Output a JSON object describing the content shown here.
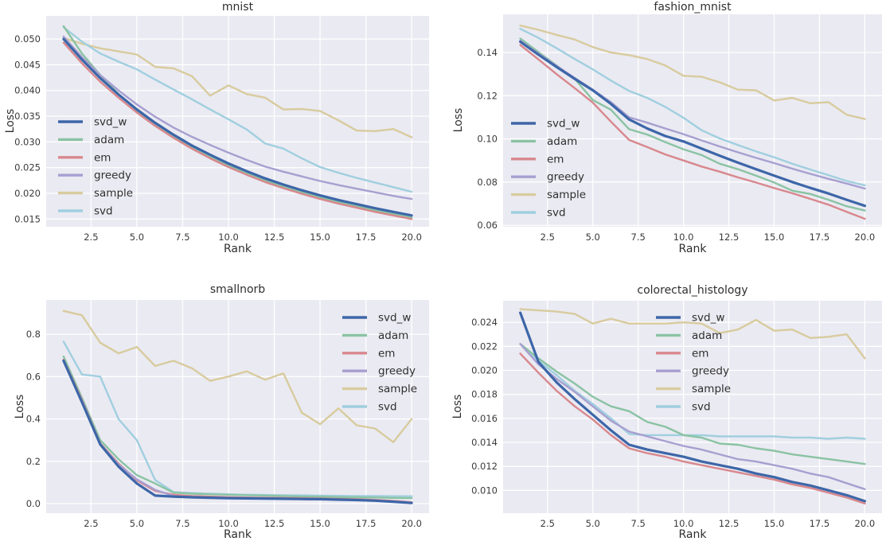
{
  "figure": {
    "background": "#ffffff",
    "plot_background": "#eaeaf2",
    "grid_color": "#ffffff",
    "text_color": "#2f2f2f",
    "tick_color": "#3a3a3a"
  },
  "palette": {
    "svd_w": "#3d66a8",
    "adam": "#8ac3a3",
    "em": "#d8878d",
    "greedy": "#a79fd0",
    "sample": "#d8cb9e",
    "svd": "#a0cfdf"
  },
  "legend_order": [
    "svd_w",
    "adam",
    "em",
    "greedy",
    "sample",
    "svd"
  ],
  "chart_data": [
    {
      "type": "line",
      "title": "mnist",
      "xlabel": "Rank",
      "ylabel": "Loss",
      "grid": true,
      "legend_position": "center-left",
      "x": [
        1,
        2,
        3,
        4,
        5,
        6,
        7,
        8,
        9,
        10,
        11,
        12,
        13,
        14,
        15,
        16,
        17,
        18,
        19,
        20
      ],
      "xlim": [
        0.05,
        20.95
      ],
      "ylim": [
        0.0135,
        0.0545
      ],
      "x_tick_values": [
        2.5,
        5,
        7.5,
        10,
        12.5,
        15,
        17.5,
        20
      ],
      "x_tick_labels": [
        "2.5",
        "5.0",
        "7.5",
        "10.0",
        "12.5",
        "15.0",
        "17.5",
        "20.0"
      ],
      "y_tick_values": [
        0.015,
        0.02,
        0.025,
        0.03,
        0.035,
        0.04,
        0.045,
        0.05
      ],
      "y_tick_labels": [
        "0.015",
        "0.020",
        "0.025",
        "0.030",
        "0.035",
        "0.040",
        "0.045",
        "0.050"
      ],
      "series": [
        {
          "name": "svd_w",
          "values": [
            0.05,
            0.046,
            0.0424,
            0.0392,
            0.0363,
            0.0337,
            0.0314,
            0.0293,
            0.0275,
            0.0258,
            0.0243,
            0.0229,
            0.0217,
            0.0206,
            0.0196,
            0.0187,
            0.0179,
            0.0171,
            0.0164,
            0.0157
          ]
        },
        {
          "name": "adam",
          "values": [
            0.0525,
            0.0472,
            0.043,
            0.0393,
            0.0361,
            0.0334,
            0.031,
            0.0289,
            0.0271,
            0.0254,
            0.0239,
            0.0225,
            0.0213,
            0.0202,
            0.0192,
            0.0183,
            0.0175,
            0.0167,
            0.016,
            0.0153
          ]
        },
        {
          "name": "em",
          "values": [
            0.0493,
            0.0453,
            0.0417,
            0.0386,
            0.0357,
            0.0331,
            0.0308,
            0.0287,
            0.0268,
            0.0251,
            0.0236,
            0.0222,
            0.021,
            0.0199,
            0.0189,
            0.018,
            0.0172,
            0.0164,
            0.0157,
            0.015
          ]
        },
        {
          "name": "greedy",
          "values": [
            0.0505,
            0.0465,
            0.043,
            0.04,
            0.0373,
            0.0349,
            0.0328,
            0.031,
            0.0294,
            0.0279,
            0.0265,
            0.0252,
            0.0242,
            0.0233,
            0.0224,
            0.0216,
            0.0209,
            0.0202,
            0.0195,
            0.0189
          ]
        },
        {
          "name": "sample",
          "values": [
            0.0502,
            0.0491,
            0.0482,
            0.0476,
            0.047,
            0.0446,
            0.0443,
            0.0428,
            0.039,
            0.041,
            0.0393,
            0.0386,
            0.0363,
            0.0364,
            0.036,
            0.0342,
            0.0322,
            0.0321,
            0.0325,
            0.0309
          ]
        },
        {
          "name": "svd",
          "values": [
            0.0523,
            0.0495,
            0.0472,
            0.0456,
            0.0441,
            0.0421,
            0.0402,
            0.0383,
            0.0363,
            0.0344,
            0.0324,
            0.0297,
            0.0287,
            0.0268,
            0.0251,
            0.024,
            0.023,
            0.0221,
            0.0212,
            0.0203
          ]
        }
      ]
    },
    {
      "type": "line",
      "title": "fashion_mnist",
      "xlabel": "Rank",
      "ylabel": "Loss",
      "grid": true,
      "legend_position": "center-left",
      "x": [
        1,
        2,
        3,
        4,
        5,
        6,
        7,
        8,
        9,
        10,
        11,
        12,
        13,
        14,
        15,
        16,
        17,
        18,
        19,
        20
      ],
      "xlim": [
        0.05,
        20.95
      ],
      "ylim": [
        0.0593,
        0.1577
      ],
      "x_tick_values": [
        2.5,
        5,
        7.5,
        10,
        12.5,
        15,
        17.5,
        20
      ],
      "x_tick_labels": [
        "2.5",
        "5.0",
        "7.5",
        "10.0",
        "12.5",
        "15.0",
        "17.5",
        "20.0"
      ],
      "y_tick_values": [
        0.06,
        0.08,
        0.1,
        0.12,
        0.14
      ],
      "y_tick_labels": [
        "0.06",
        "0.08",
        "0.10",
        "0.12",
        "0.14"
      ],
      "series": [
        {
          "name": "svd_w",
          "values": [
            0.145,
            0.139,
            0.1333,
            0.1278,
            0.1225,
            0.1162,
            0.109,
            0.1048,
            0.1013,
            0.0988,
            0.0955,
            0.0922,
            0.089,
            0.086,
            0.083,
            0.08,
            0.0773,
            0.0747,
            0.0718,
            0.069
          ]
        },
        {
          "name": "adam",
          "values": [
            0.1465,
            0.1402,
            0.134,
            0.1278,
            0.118,
            0.1135,
            0.1045,
            0.102,
            0.0985,
            0.0952,
            0.0925,
            0.0885,
            0.086,
            0.083,
            0.0798,
            0.076,
            0.0745,
            0.0718,
            0.0688,
            0.0668
          ]
        },
        {
          "name": "em",
          "values": [
            0.1435,
            0.1368,
            0.13,
            0.1235,
            0.1168,
            0.108,
            0.0995,
            0.0962,
            0.0928,
            0.09,
            0.0872,
            0.0848,
            0.0822,
            0.0798,
            0.0772,
            0.0748,
            0.0722,
            0.0695,
            0.0662,
            0.063
          ]
        },
        {
          "name": "greedy",
          "values": [
            0.1455,
            0.1395,
            0.1338,
            0.1282,
            0.1228,
            0.117,
            0.11,
            0.1075,
            0.1048,
            0.1022,
            0.0993,
            0.0965,
            0.0938,
            0.0912,
            0.0888,
            0.0862,
            0.0838,
            0.0815,
            0.0793,
            0.077
          ]
        },
        {
          "name": "sample",
          "values": [
            0.1525,
            0.1505,
            0.1482,
            0.146,
            0.1425,
            0.14,
            0.1388,
            0.137,
            0.134,
            0.1292,
            0.1288,
            0.1262,
            0.1228,
            0.1225,
            0.1178,
            0.119,
            0.1165,
            0.117,
            0.1112,
            0.1092
          ]
        },
        {
          "name": "svd",
          "values": [
            0.151,
            0.1468,
            0.142,
            0.137,
            0.1322,
            0.127,
            0.1222,
            0.119,
            0.1148,
            0.1098,
            0.104,
            0.1002,
            0.0972,
            0.0942,
            0.0915,
            0.0885,
            0.0858,
            0.0832,
            0.0805,
            0.0785
          ]
        }
      ]
    },
    {
      "type": "line",
      "title": "smallnorb",
      "xlabel": "Rank",
      "ylabel": "Loss",
      "grid": true,
      "legend_position": "upper-right",
      "x": [
        1,
        2,
        3,
        4,
        5,
        6,
        7,
        8,
        9,
        10,
        11,
        12,
        13,
        14,
        15,
        16,
        17,
        18,
        19,
        20
      ],
      "xlim": [
        0.05,
        20.95
      ],
      "ylim": [
        -0.045,
        0.962
      ],
      "x_tick_values": [
        2.5,
        5,
        7.5,
        10,
        12.5,
        15,
        17.5,
        20
      ],
      "x_tick_labels": [
        "2.5",
        "5.0",
        "7.5",
        "10.0",
        "12.5",
        "15.0",
        "17.5",
        "20.0"
      ],
      "y_tick_values": [
        0.0,
        0.2,
        0.4,
        0.6,
        0.8
      ],
      "y_tick_labels": [
        "0.0",
        "0.2",
        "0.4",
        "0.6",
        "0.8"
      ],
      "series": [
        {
          "name": "svd_w",
          "values": [
            0.675,
            0.48,
            0.28,
            0.175,
            0.095,
            0.038,
            0.033,
            0.03,
            0.028,
            0.026,
            0.025,
            0.024,
            0.023,
            0.022,
            0.021,
            0.019,
            0.017,
            0.014,
            0.009,
            0.003
          ]
        },
        {
          "name": "adam",
          "values": [
            0.695,
            0.5,
            0.3,
            0.21,
            0.135,
            0.095,
            0.052,
            0.047,
            0.044,
            0.042,
            0.04,
            0.038,
            0.036,
            0.034,
            0.033,
            0.031,
            0.03,
            0.029,
            0.027,
            0.026
          ]
        },
        {
          "name": "em",
          "values": [
            0.68,
            0.49,
            0.285,
            0.19,
            0.11,
            0.06,
            0.042,
            0.036,
            0.033,
            0.031,
            0.029,
            0.028,
            0.027,
            0.026,
            0.025,
            0.023,
            0.021,
            0.018,
            0.013,
            0.007
          ]
        },
        {
          "name": "greedy",
          "values": [
            0.67,
            0.485,
            0.282,
            0.185,
            0.115,
            0.065,
            0.036,
            0.031,
            0.029,
            0.027,
            0.026,
            0.025,
            0.024,
            0.023,
            0.022,
            0.02,
            0.018,
            0.015,
            0.01,
            0.004
          ]
        },
        {
          "name": "sample",
          "values": [
            0.91,
            0.89,
            0.76,
            0.71,
            0.74,
            0.65,
            0.675,
            0.64,
            0.58,
            0.6,
            0.625,
            0.585,
            0.615,
            0.43,
            0.375,
            0.45,
            0.37,
            0.355,
            0.29,
            0.4
          ]
        },
        {
          "name": "svd",
          "values": [
            0.765,
            0.61,
            0.6,
            0.4,
            0.3,
            0.112,
            0.055,
            0.05,
            0.047,
            0.044,
            0.042,
            0.041,
            0.04,
            0.039,
            0.038,
            0.037,
            0.036,
            0.036,
            0.035,
            0.035
          ]
        }
      ]
    },
    {
      "type": "line",
      "title": "colorectal_histology",
      "xlabel": "Rank",
      "ylabel": "Loss",
      "grid": true,
      "legend_position": "upper-center",
      "x": [
        1,
        2,
        3,
        4,
        5,
        6,
        7,
        8,
        9,
        10,
        11,
        12,
        13,
        14,
        15,
        16,
        17,
        18,
        19,
        20
      ],
      "xlim": [
        0.05,
        20.95
      ],
      "ylim": [
        0.0081,
        0.0258
      ],
      "x_tick_values": [
        2.5,
        5,
        7.5,
        10,
        12.5,
        15,
        17.5,
        20
      ],
      "x_tick_labels": [
        "2.5",
        "5.0",
        "7.5",
        "10.0",
        "12.5",
        "15.0",
        "17.5",
        "20.0"
      ],
      "y_tick_values": [
        0.01,
        0.012,
        0.014,
        0.016,
        0.018,
        0.02,
        0.022,
        0.024
      ],
      "y_tick_labels": [
        "0.010",
        "0.012",
        "0.014",
        "0.016",
        "0.018",
        "0.020",
        "0.022",
        "0.024"
      ],
      "series": [
        {
          "name": "svd_w",
          "values": [
            0.0248,
            0.0207,
            0.019,
            0.0176,
            0.0163,
            0.015,
            0.0138,
            0.0134,
            0.0131,
            0.0128,
            0.0124,
            0.0121,
            0.0118,
            0.0114,
            0.0111,
            0.0107,
            0.0104,
            0.01,
            0.0096,
            0.0091
          ]
        },
        {
          "name": "adam",
          "values": [
            0.0222,
            0.021,
            0.0199,
            0.0189,
            0.0178,
            0.017,
            0.0166,
            0.0157,
            0.0153,
            0.0146,
            0.0144,
            0.0139,
            0.0138,
            0.0135,
            0.0133,
            0.013,
            0.0128,
            0.0126,
            0.0124,
            0.0122
          ]
        },
        {
          "name": "em",
          "values": [
            0.0214,
            0.0198,
            0.0183,
            0.017,
            0.0159,
            0.0146,
            0.0135,
            0.0131,
            0.0128,
            0.0124,
            0.0121,
            0.0118,
            0.0115,
            0.0112,
            0.0109,
            0.0105,
            0.0102,
            0.0098,
            0.0094,
            0.0089
          ]
        },
        {
          "name": "greedy",
          "values": [
            0.0222,
            0.0205,
            0.0193,
            0.0182,
            0.017,
            0.0158,
            0.0149,
            0.0145,
            0.0141,
            0.0137,
            0.0134,
            0.013,
            0.0126,
            0.0124,
            0.0121,
            0.0118,
            0.0114,
            0.0111,
            0.0106,
            0.0101
          ]
        },
        {
          "name": "sample",
          "values": [
            0.0251,
            0.025,
            0.0249,
            0.0247,
            0.0239,
            0.0243,
            0.0239,
            0.0239,
            0.0239,
            0.024,
            0.0239,
            0.0231,
            0.0234,
            0.0242,
            0.0233,
            0.0234,
            0.0227,
            0.0228,
            0.023,
            0.021
          ]
        },
        {
          "name": "svd",
          "values": [
            0.0222,
            0.0208,
            0.0196,
            0.0183,
            0.0172,
            0.016,
            0.0147,
            0.0146,
            0.0146,
            0.0146,
            0.0146,
            0.0145,
            0.0145,
            0.0145,
            0.0145,
            0.0144,
            0.0144,
            0.0143,
            0.0144,
            0.0143
          ]
        }
      ]
    }
  ]
}
